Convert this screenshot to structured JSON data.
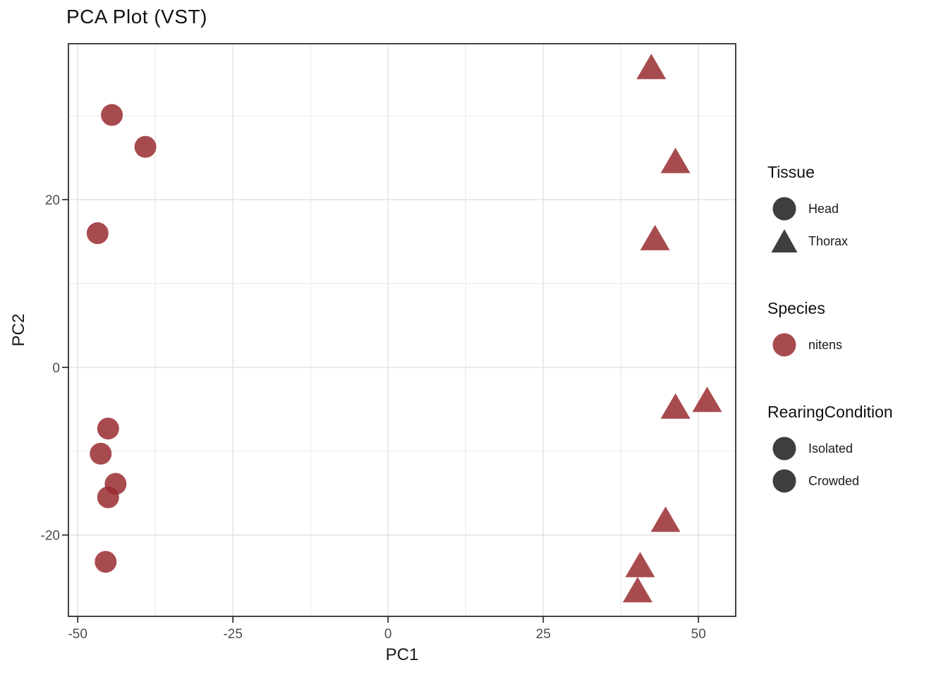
{
  "title": "PCA Plot (VST)",
  "legend": {
    "sections": [
      {
        "id": "tissue",
        "title": "Tissue",
        "items": [
          {
            "label": "Head",
            "shape": "circle",
            "color": "#1C1C1C"
          },
          {
            "label": "Thorax",
            "shape": "triangle",
            "color": "#1C1C1C"
          }
        ]
      },
      {
        "id": "species",
        "title": "Species",
        "items": [
          {
            "label": "nitens",
            "shape": "circle",
            "color": "#992B30"
          }
        ]
      },
      {
        "id": "rearing-condition",
        "title": "RearingCondition",
        "items": [
          {
            "label": "Isolated",
            "shape": "circle",
            "color": "#1C1C1C"
          },
          {
            "label": "Crowded",
            "shape": "circle",
            "color": "#1C1C1C"
          }
        ]
      }
    ]
  },
  "colors": {
    "point_red": "#992B30",
    "legend_glyph_dark": "#1C1C1C",
    "tick_label": "#4D4D4D",
    "panel_border": "#2F2F2F"
  },
  "chart_data": {
    "type": "scatter",
    "title": "PCA Plot (VST)",
    "xlabel": "PC1",
    "ylabel": "PC2",
    "xlim": [
      -51.5,
      56.0
    ],
    "ylim": [
      -29.7,
      38.6
    ],
    "x_ticks": [
      -50,
      -25,
      0,
      25,
      50
    ],
    "x_minor_ticks": [
      -37.5,
      -12.5,
      12.5,
      37.5
    ],
    "y_ticks": [
      -20,
      0,
      20
    ],
    "y_minor_ticks": [
      -10,
      10,
      30
    ],
    "grid": true,
    "legend_position": "right",
    "point_opacity": 0.85,
    "series": [
      {
        "name": "nitens Head",
        "tissue": "Head",
        "species": "nitens",
        "shape": "circle",
        "color": "#992B30",
        "points": [
          [
            -44.5,
            30.1
          ],
          [
            -39.1,
            26.3
          ],
          [
            -46.8,
            16.0
          ],
          [
            -45.1,
            -7.3
          ],
          [
            -46.3,
            -10.3
          ],
          [
            -43.9,
            -13.9
          ],
          [
            -45.1,
            -15.5
          ],
          [
            -45.5,
            -23.2
          ]
        ]
      },
      {
        "name": "nitens Thorax",
        "tissue": "Thorax",
        "species": "nitens",
        "shape": "triangle",
        "color": "#992B30",
        "points": [
          [
            42.4,
            35.8
          ],
          [
            46.3,
            24.6
          ],
          [
            43.0,
            15.4
          ],
          [
            46.3,
            -4.7
          ],
          [
            51.4,
            -3.9
          ],
          [
            44.7,
            -18.2
          ],
          [
            40.6,
            -23.6
          ],
          [
            40.2,
            -26.6
          ]
        ]
      }
    ]
  }
}
